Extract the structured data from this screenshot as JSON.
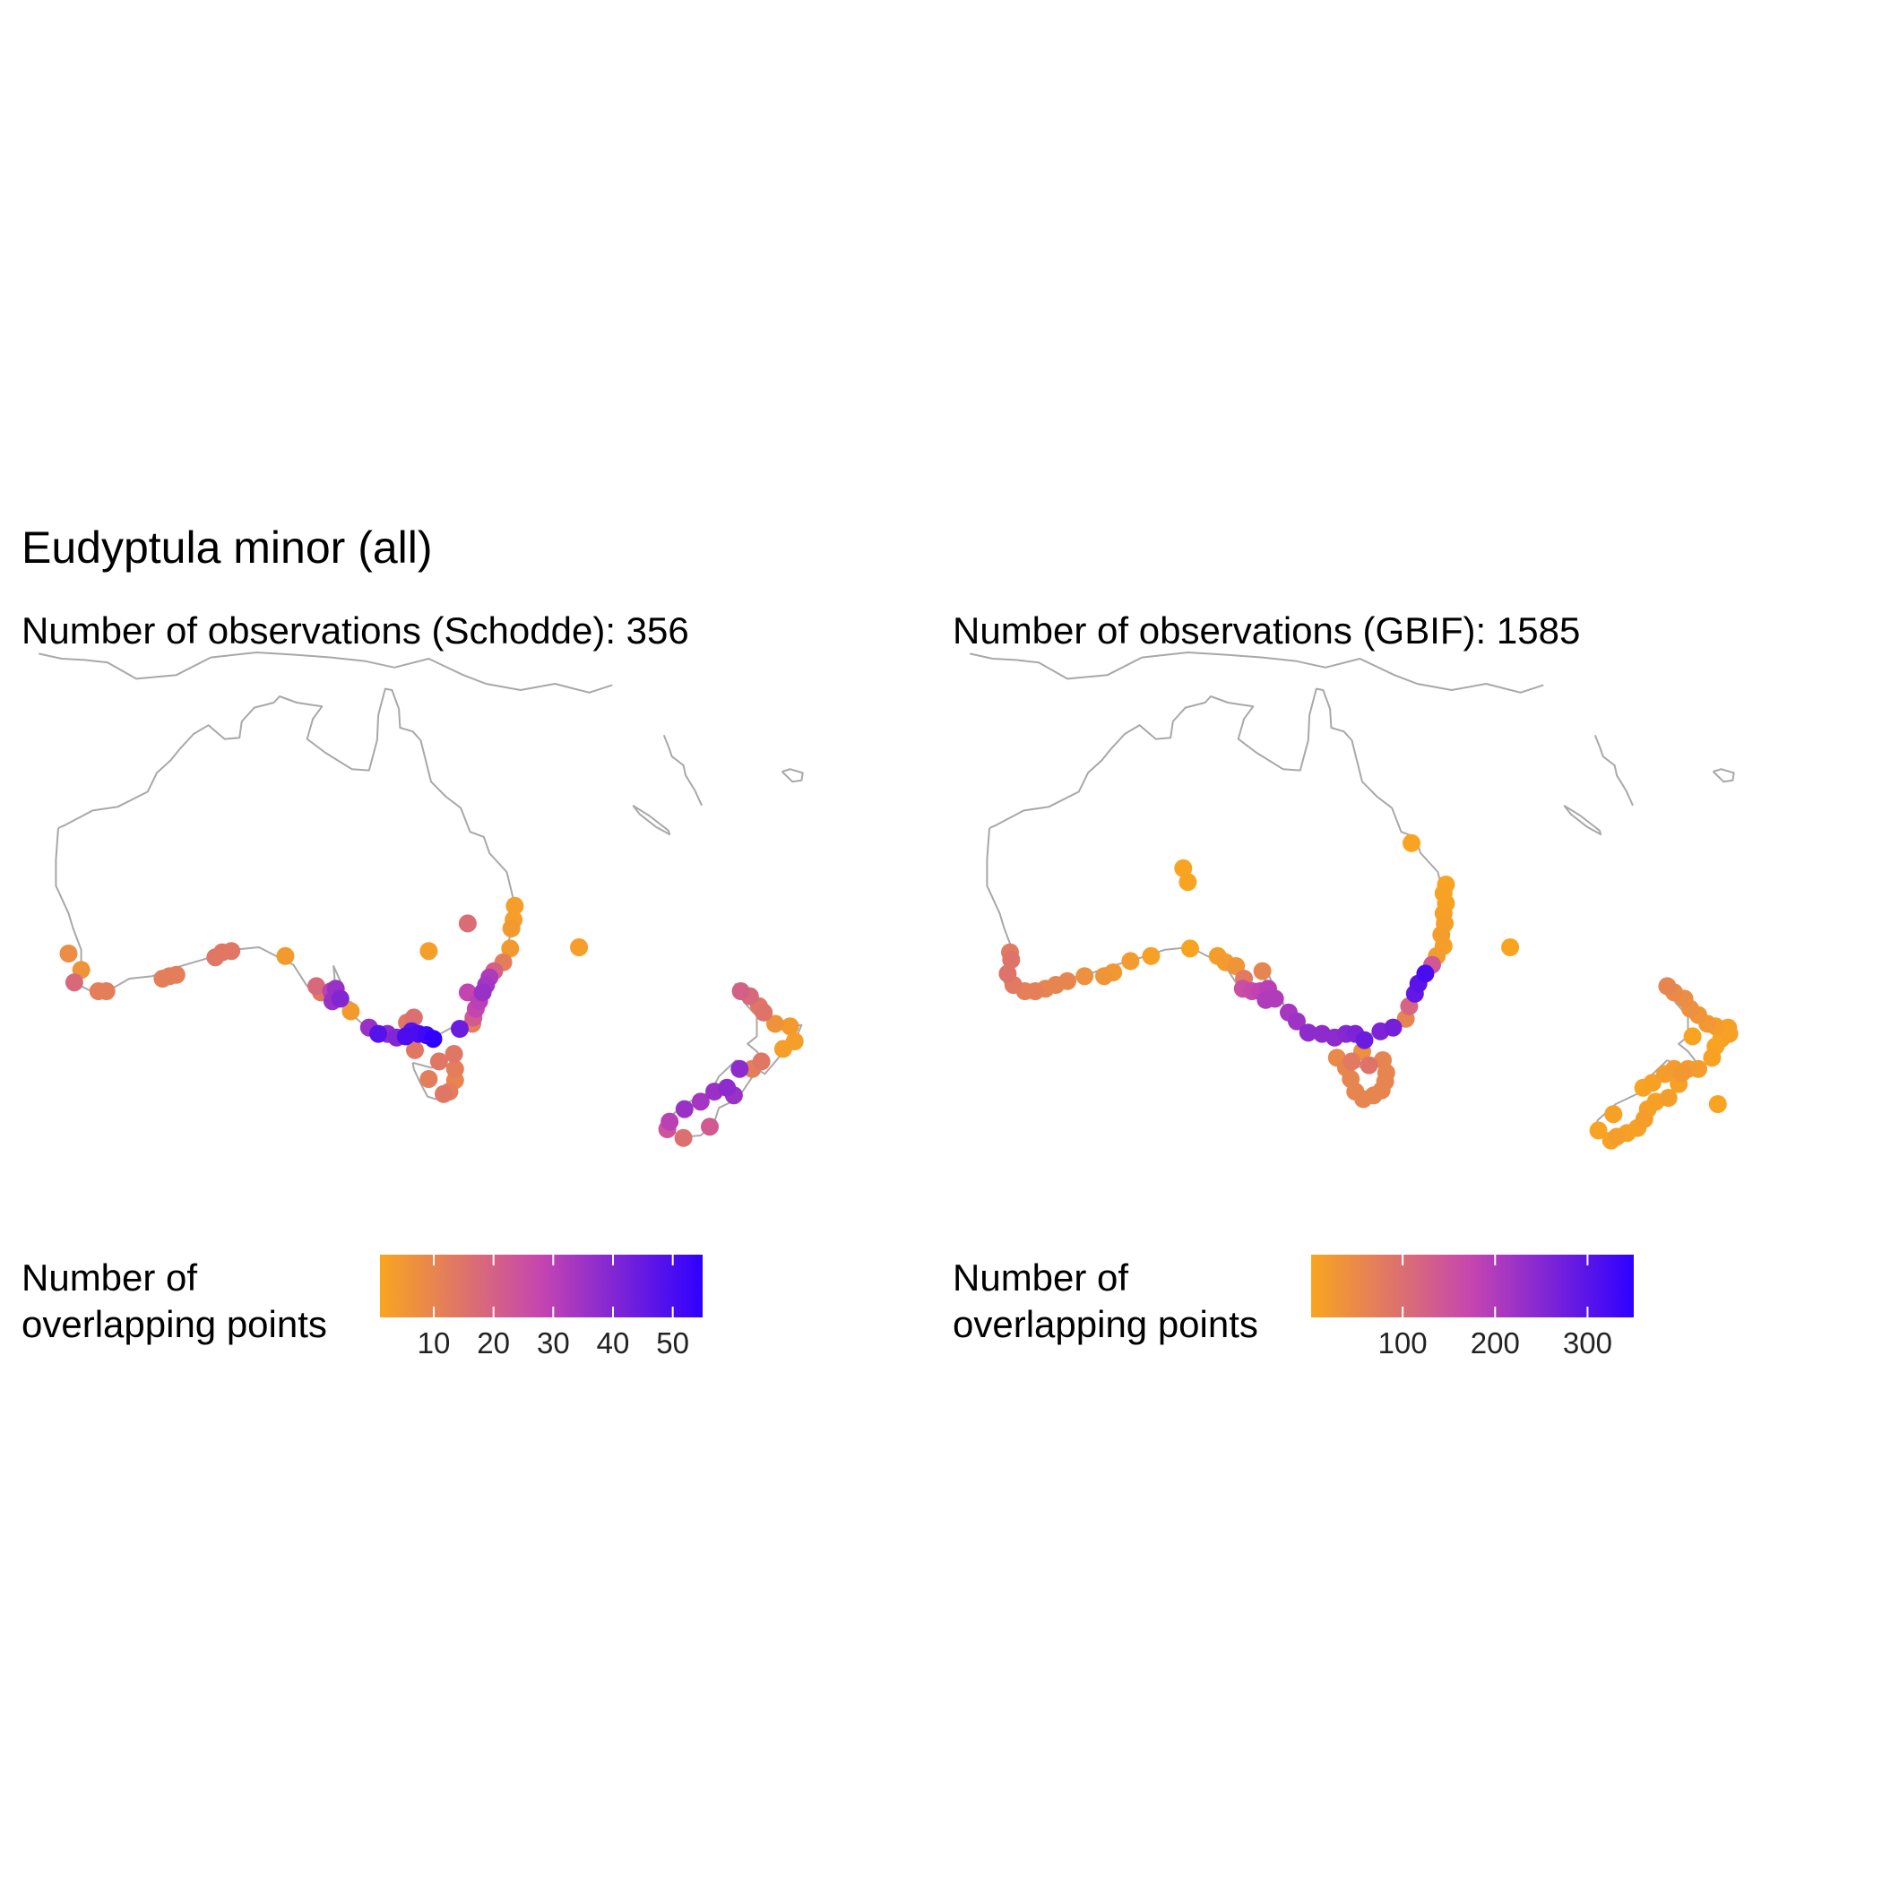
{
  "title": "Eudyptula minor (all)",
  "colors": {
    "low": "#f9a51f",
    "mid": "#c545b0",
    "high": "#2f00ff",
    "coastline": "#a8a8a8"
  },
  "panels": [
    {
      "subtitle": "Number of observations (Schodde): 356",
      "legend": {
        "title_line1": "Number of",
        "title_line2": "overlapping points",
        "min": 1,
        "max": 55,
        "ticks": [
          10,
          20,
          30,
          40,
          50
        ]
      },
      "points": [
        {
          "lon": 153.5,
          "lat": -28.2,
          "n": 3
        },
        {
          "lon": 153.4,
          "lat": -29.3,
          "n": 3
        },
        {
          "lon": 153.2,
          "lat": -30.0,
          "n": 4
        },
        {
          "lon": 153.1,
          "lat": -31.6,
          "n": 4
        },
        {
          "lon": 152.5,
          "lat": -32.7,
          "n": 12
        },
        {
          "lon": 151.7,
          "lat": -33.4,
          "n": 20
        },
        {
          "lon": 151.3,
          "lat": -33.9,
          "n": 32
        },
        {
          "lon": 151.0,
          "lat": -34.5,
          "n": 34
        },
        {
          "lon": 150.7,
          "lat": -35.1,
          "n": 36
        },
        {
          "lon": 150.4,
          "lat": -35.8,
          "n": 30
        },
        {
          "lon": 150.1,
          "lat": -36.4,
          "n": 28
        },
        {
          "lon": 149.9,
          "lat": -37.1,
          "n": 22
        },
        {
          "lon": 149.8,
          "lat": -37.6,
          "n": 12
        },
        {
          "lon": 149.4,
          "lat": -35.1,
          "n": 28
        },
        {
          "lon": 148.7,
          "lat": -38.0,
          "n": 44
        },
        {
          "lon": 146.4,
          "lat": -38.8,
          "n": 55
        },
        {
          "lon": 145.8,
          "lat": -38.5,
          "n": 52
        },
        {
          "lon": 145.1,
          "lat": -38.4,
          "n": 50
        },
        {
          "lon": 144.5,
          "lat": -38.2,
          "n": 48
        },
        {
          "lon": 144.0,
          "lat": -38.6,
          "n": 50
        },
        {
          "lon": 143.2,
          "lat": -38.7,
          "n": 40
        },
        {
          "lon": 142.4,
          "lat": -38.4,
          "n": 38
        },
        {
          "lon": 141.6,
          "lat": -38.4,
          "n": 48
        },
        {
          "lon": 140.8,
          "lat": -37.9,
          "n": 36
        },
        {
          "lon": 139.2,
          "lat": -36.6,
          "n": 4
        },
        {
          "lon": 138.3,
          "lat": -35.6,
          "n": 40
        },
        {
          "lon": 137.6,
          "lat": -35.8,
          "n": 36
        },
        {
          "lon": 137.9,
          "lat": -34.8,
          "n": 36
        },
        {
          "lon": 137.5,
          "lat": -35.0,
          "n": 30
        },
        {
          "lon": 136.6,
          "lat": -35.1,
          "n": 14
        },
        {
          "lon": 136.2,
          "lat": -34.6,
          "n": 18
        },
        {
          "lon": 133.5,
          "lat": -32.2,
          "n": 4
        },
        {
          "lon": 128.8,
          "lat": -31.8,
          "n": 14
        },
        {
          "lon": 128.0,
          "lat": -31.9,
          "n": 14
        },
        {
          "lon": 127.4,
          "lat": -32.3,
          "n": 14
        },
        {
          "lon": 124.0,
          "lat": -33.7,
          "n": 12
        },
        {
          "lon": 123.4,
          "lat": -33.8,
          "n": 12
        },
        {
          "lon": 122.8,
          "lat": -34.0,
          "n": 12
        },
        {
          "lon": 117.9,
          "lat": -35.0,
          "n": 12
        },
        {
          "lon": 117.2,
          "lat": -35.0,
          "n": 12
        },
        {
          "lon": 115.7,
          "lat": -33.3,
          "n": 6
        },
        {
          "lon": 115.1,
          "lat": -34.3,
          "n": 18
        },
        {
          "lon": 114.6,
          "lat": -32.0,
          "n": 8
        },
        {
          "lon": 144.1,
          "lat": -37.5,
          "n": 14
        },
        {
          "lon": 144.7,
          "lat": -37.1,
          "n": 16
        },
        {
          "lon": 144.8,
          "lat": -39.7,
          "n": 14
        },
        {
          "lon": 146.9,
          "lat": -40.6,
          "n": 14
        },
        {
          "lon": 148.2,
          "lat": -40.0,
          "n": 14
        },
        {
          "lon": 148.3,
          "lat": -41.2,
          "n": 12
        },
        {
          "lon": 148.3,
          "lat": -42.1,
          "n": 10
        },
        {
          "lon": 147.8,
          "lat": -43.0,
          "n": 12
        },
        {
          "lon": 147.3,
          "lat": -43.2,
          "n": 14
        },
        {
          "lon": 146.0,
          "lat": -42.0,
          "n": 12
        },
        {
          "lon": 149.4,
          "lat": -29.6,
          "n": 17
        },
        {
          "lon": 146.0,
          "lat": -31.8,
          "n": 3
        },
        {
          "lon": 159.1,
          "lat": -31.5,
          "n": 3
        },
        {
          "lon": 173.2,
          "lat": -35.0,
          "n": 20
        },
        {
          "lon": 174.0,
          "lat": -35.4,
          "n": 18
        },
        {
          "lon": 174.8,
          "lat": -36.2,
          "n": 14
        },
        {
          "lon": 175.2,
          "lat": -36.7,
          "n": 15
        },
        {
          "lon": 176.2,
          "lat": -37.6,
          "n": 6
        },
        {
          "lon": 177.5,
          "lat": -37.8,
          "n": 4
        },
        {
          "lon": 177.9,
          "lat": -39.0,
          "n": 3
        },
        {
          "lon": 176.9,
          "lat": -39.6,
          "n": 3
        },
        {
          "lon": 175.0,
          "lat": -40.6,
          "n": 14
        },
        {
          "lon": 174.2,
          "lat": -41.2,
          "n": 12
        },
        {
          "lon": 173.1,
          "lat": -41.2,
          "n": 38
        },
        {
          "lon": 172.6,
          "lat": -43.3,
          "n": 36
        },
        {
          "lon": 172.0,
          "lat": -42.7,
          "n": 38
        },
        {
          "lon": 170.9,
          "lat": -43.0,
          "n": 36
        },
        {
          "lon": 169.7,
          "lat": -43.8,
          "n": 34
        },
        {
          "lon": 168.3,
          "lat": -44.4,
          "n": 36
        },
        {
          "lon": 167.0,
          "lat": -45.4,
          "n": 30
        },
        {
          "lon": 166.8,
          "lat": -46.0,
          "n": 24
        },
        {
          "lon": 168.2,
          "lat": -46.7,
          "n": 16
        },
        {
          "lon": 170.5,
          "lat": -45.8,
          "n": 22
        }
      ]
    },
    {
      "subtitle": "Number of observations (GBIF): 1585",
      "legend": {
        "title_line1": "Number of",
        "title_line2": "overlapping points",
        "min": 1,
        "max": 350,
        "ticks": [
          100,
          200,
          300
        ]
      },
      "points": [
        {
          "lon": 150.5,
          "lat": -23.2,
          "n": 3
        },
        {
          "lon": 153.5,
          "lat": -26.5,
          "n": 5
        },
        {
          "lon": 153.3,
          "lat": -27.2,
          "n": 6
        },
        {
          "lon": 153.5,
          "lat": -28.0,
          "n": 8
        },
        {
          "lon": 153.3,
          "lat": -28.8,
          "n": 10
        },
        {
          "lon": 153.4,
          "lat": -29.6,
          "n": 12
        },
        {
          "lon": 153.1,
          "lat": -30.5,
          "n": 15
        },
        {
          "lon": 153.3,
          "lat": -31.4,
          "n": 12
        },
        {
          "lon": 152.7,
          "lat": -32.2,
          "n": 20
        },
        {
          "lon": 152.3,
          "lat": -32.9,
          "n": 140
        },
        {
          "lon": 151.7,
          "lat": -33.6,
          "n": 320
        },
        {
          "lon": 151.1,
          "lat": -34.4,
          "n": 300
        },
        {
          "lon": 150.8,
          "lat": -35.2,
          "n": 290
        },
        {
          "lon": 150.3,
          "lat": -36.2,
          "n": 120
        },
        {
          "lon": 150.0,
          "lat": -37.2,
          "n": 60
        },
        {
          "lon": 148.9,
          "lat": -37.9,
          "n": 270
        },
        {
          "lon": 147.8,
          "lat": -38.2,
          "n": 260
        },
        {
          "lon": 146.4,
          "lat": -38.9,
          "n": 280
        },
        {
          "lon": 145.6,
          "lat": -38.4,
          "n": 260
        },
        {
          "lon": 144.8,
          "lat": -38.4,
          "n": 250
        },
        {
          "lon": 143.8,
          "lat": -38.7,
          "n": 240
        },
        {
          "lon": 142.7,
          "lat": -38.4,
          "n": 240
        },
        {
          "lon": 141.5,
          "lat": -38.3,
          "n": 240
        },
        {
          "lon": 140.5,
          "lat": -37.4,
          "n": 220
        },
        {
          "lon": 139.8,
          "lat": -36.7,
          "n": 210
        },
        {
          "lon": 138.6,
          "lat": -35.6,
          "n": 200
        },
        {
          "lon": 137.8,
          "lat": -35.7,
          "n": 200
        },
        {
          "lon": 138.0,
          "lat": -34.8,
          "n": 190
        },
        {
          "lon": 137.3,
          "lat": -35.0,
          "n": 180
        },
        {
          "lon": 136.6,
          "lat": -35.0,
          "n": 170
        },
        {
          "lon": 135.8,
          "lat": -34.8,
          "n": 160
        },
        {
          "lon": 135.9,
          "lat": -34.0,
          "n": 80
        },
        {
          "lon": 135.2,
          "lat": -33.0,
          "n": 30
        },
        {
          "lon": 134.3,
          "lat": -32.7,
          "n": 20
        },
        {
          "lon": 133.6,
          "lat": -32.2,
          "n": 15
        },
        {
          "lon": 137.5,
          "lat": -33.4,
          "n": 60
        },
        {
          "lon": 131.2,
          "lat": -31.6,
          "n": 3
        },
        {
          "lon": 127.8,
          "lat": -32.2,
          "n": 10
        },
        {
          "lon": 126.0,
          "lat": -32.6,
          "n": 20
        },
        {
          "lon": 124.5,
          "lat": -33.5,
          "n": 25
        },
        {
          "lon": 123.7,
          "lat": -33.8,
          "n": 30
        },
        {
          "lon": 122.0,
          "lat": -33.8,
          "n": 40
        },
        {
          "lon": 120.5,
          "lat": -34.2,
          "n": 60
        },
        {
          "lon": 119.5,
          "lat": -34.5,
          "n": 60
        },
        {
          "lon": 118.6,
          "lat": -34.8,
          "n": 60
        },
        {
          "lon": 117.7,
          "lat": -35.0,
          "n": 70
        },
        {
          "lon": 116.8,
          "lat": -35.0,
          "n": 70
        },
        {
          "lon": 115.8,
          "lat": -34.5,
          "n": 80
        },
        {
          "lon": 115.3,
          "lat": -33.6,
          "n": 90
        },
        {
          "lon": 115.6,
          "lat": -32.5,
          "n": 90
        },
        {
          "lon": 115.5,
          "lat": -31.9,
          "n": 80
        },
        {
          "lon": 146.2,
          "lat": -39.8,
          "n": 40
        },
        {
          "lon": 144.0,
          "lat": -40.3,
          "n": 50
        },
        {
          "lon": 145.3,
          "lat": -40.6,
          "n": 80
        },
        {
          "lon": 146.8,
          "lat": -40.9,
          "n": 90
        },
        {
          "lon": 148.0,
          "lat": -40.5,
          "n": 60
        },
        {
          "lon": 148.3,
          "lat": -41.5,
          "n": 60
        },
        {
          "lon": 148.2,
          "lat": -42.2,
          "n": 60
        },
        {
          "lon": 147.9,
          "lat": -42.9,
          "n": 60
        },
        {
          "lon": 147.2,
          "lat": -43.3,
          "n": 60
        },
        {
          "lon": 146.3,
          "lat": -43.6,
          "n": 60
        },
        {
          "lon": 145.6,
          "lat": -43.0,
          "n": 60
        },
        {
          "lon": 145.2,
          "lat": -42.0,
          "n": 60
        },
        {
          "lon": 144.8,
          "lat": -41.1,
          "n": 60
        },
        {
          "lon": 130.6,
          "lat": -25.2,
          "n": 3
        },
        {
          "lon": 131.0,
          "lat": -26.3,
          "n": 3
        },
        {
          "lon": 159.1,
          "lat": -31.5,
          "n": 3
        },
        {
          "lon": 172.8,
          "lat": -34.6,
          "n": 60
        },
        {
          "lon": 173.4,
          "lat": -35.1,
          "n": 50
        },
        {
          "lon": 174.3,
          "lat": -35.6,
          "n": 45
        },
        {
          "lon": 174.8,
          "lat": -36.4,
          "n": 40
        },
        {
          "lon": 175.5,
          "lat": -36.9,
          "n": 30
        },
        {
          "lon": 176.3,
          "lat": -37.6,
          "n": 25
        },
        {
          "lon": 177.0,
          "lat": -37.8,
          "n": 15
        },
        {
          "lon": 178.1,
          "lat": -37.9,
          "n": 10
        },
        {
          "lon": 178.2,
          "lat": -38.4,
          "n": 10
        },
        {
          "lon": 177.5,
          "lat": -38.8,
          "n": 5
        },
        {
          "lon": 177.0,
          "lat": -39.4,
          "n": 5
        },
        {
          "lon": 175.0,
          "lat": -38.6,
          "n": 5
        },
        {
          "lon": 176.7,
          "lat": -40.3,
          "n": 8
        },
        {
          "lon": 175.5,
          "lat": -41.2,
          "n": 15
        },
        {
          "lon": 174.6,
          "lat": -41.2,
          "n": 20
        },
        {
          "lon": 174.1,
          "lat": -41.5,
          "n": 25
        },
        {
          "lon": 173.4,
          "lat": -41.2,
          "n": 20
        },
        {
          "lon": 172.6,
          "lat": -41.6,
          "n": 15
        },
        {
          "lon": 171.5,
          "lat": -42.3,
          "n": 10
        },
        {
          "lon": 170.7,
          "lat": -42.7,
          "n": 5
        },
        {
          "lon": 173.8,
          "lat": -42.4,
          "n": 10
        },
        {
          "lon": 172.9,
          "lat": -43.5,
          "n": 15
        },
        {
          "lon": 171.8,
          "lat": -43.8,
          "n": 10
        },
        {
          "lon": 171.1,
          "lat": -44.4,
          "n": 10
        },
        {
          "lon": 170.8,
          "lat": -45.2,
          "n": 15
        },
        {
          "lon": 170.2,
          "lat": -45.9,
          "n": 10
        },
        {
          "lon": 169.3,
          "lat": -46.3,
          "n": 10
        },
        {
          "lon": 168.4,
          "lat": -46.6,
          "n": 15
        },
        {
          "lon": 167.9,
          "lat": -46.9,
          "n": 8
        },
        {
          "lon": 166.8,
          "lat": -46.1,
          "n": 5
        },
        {
          "lon": 168.1,
          "lat": -44.8,
          "n": 10
        },
        {
          "lon": 177.2,
          "lat": -44.0,
          "n": 5
        }
      ]
    }
  ]
}
